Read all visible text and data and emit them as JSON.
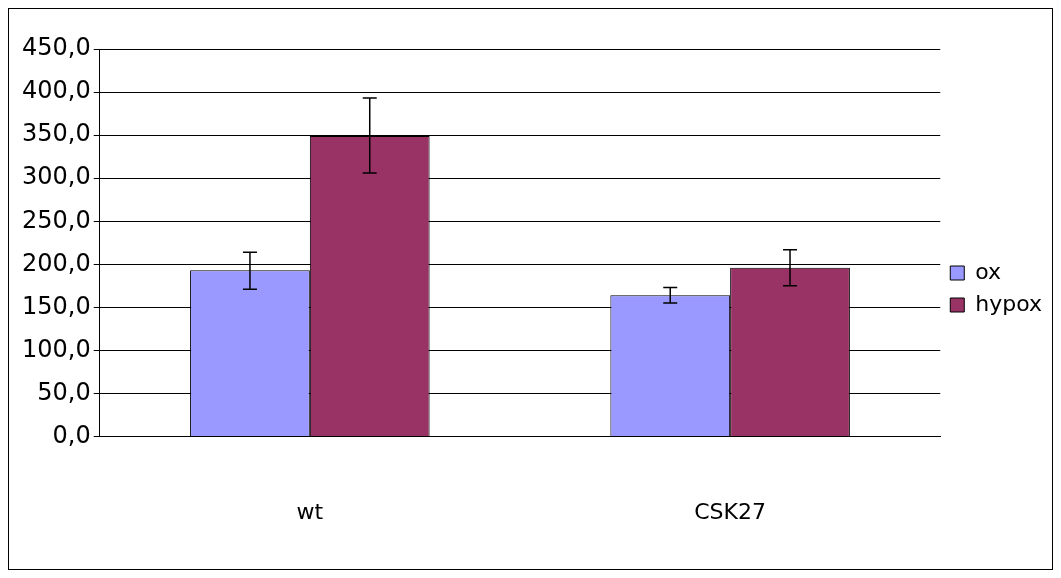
{
  "chart_data": {
    "type": "bar",
    "categories": [
      "wt",
      "CSK27"
    ],
    "series": [
      {
        "name": "ox",
        "color": "#9999ff",
        "values": [
          193,
          164
        ],
        "errors": [
          [
            171,
            214
          ],
          [
            155,
            173
          ]
        ]
      },
      {
        "name": "hypox",
        "color": "#993366",
        "values": [
          349,
          196
        ],
        "errors": [
          [
            306,
            393
          ],
          [
            175,
            217
          ]
        ]
      }
    ],
    "ylim": [
      0,
      450
    ],
    "yticks": [
      {
        "value": 0,
        "label": "0,0"
      },
      {
        "value": 50,
        "label": "50,0"
      },
      {
        "value": 100,
        "label": "100,0"
      },
      {
        "value": 150,
        "label": "150,0"
      },
      {
        "value": 200,
        "label": "200,0"
      },
      {
        "value": 250,
        "label": "250,0"
      },
      {
        "value": 300,
        "label": "300,0"
      },
      {
        "value": 350,
        "label": "350,0"
      },
      {
        "value": 400,
        "label": "400,0"
      },
      {
        "value": 450,
        "label": "450,0"
      }
    ],
    "grid": "y",
    "legend": "right"
  }
}
